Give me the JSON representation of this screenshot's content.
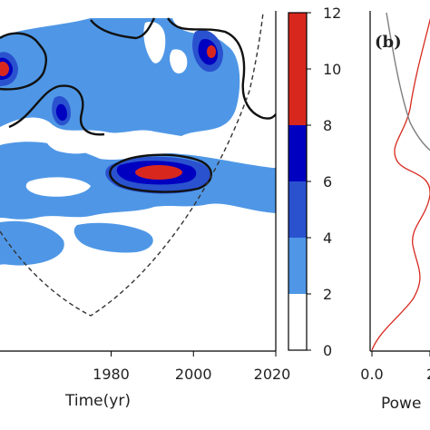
{
  "chart_data": [
    {
      "type": "heatmap",
      "panel": "wavelet-power-spectrum",
      "title": "",
      "xlabel": "Time(yr)",
      "ylabel": "",
      "xlim": [
        1953,
        2020
      ],
      "xticks": [
        1980,
        2000,
        2020
      ],
      "x_tick_labels": [
        "1980",
        "2000",
        "2020"
      ],
      "grid": false,
      "colorbar": {
        "levels": [
          0,
          2,
          4,
          6,
          8,
          10,
          12
        ],
        "tick_labels": [
          "0",
          "2",
          "4",
          "6",
          "8",
          "10",
          "12"
        ],
        "colors": [
          "#ffffff",
          "#4f97e6",
          "#2a52cf",
          "#0000c0",
          "#d8281e"
        ]
      },
      "high_power_centers": [
        {
          "time": 1955,
          "level": 10
        },
        {
          "time": 1960,
          "level": 8
        },
        {
          "time": 1971,
          "level": 8
        },
        {
          "time": 2007,
          "level": 10
        },
        {
          "time": 1998,
          "level": 12
        }
      ],
      "cone_of_influence": "dashed",
      "significance_contours": "solid-black"
    },
    {
      "type": "line",
      "panel": "global-power",
      "panel_label": "(b)",
      "xlabel": "Powe",
      "x_tick_labels": [
        "0.0",
        "2"
      ],
      "series": [
        {
          "color": "#d8281e",
          "points": [
            [
              0.0,
              100
            ],
            [
              0.7,
              80
            ],
            [
              1.3,
              60
            ],
            [
              1.6,
              40
            ],
            [
              1.2,
              10
            ]
          ]
        },
        {
          "color": "#808080",
          "points": [
            [
              1.2,
              0
            ],
            [
              1.8,
              10
            ],
            [
              2.2,
              25
            ]
          ]
        }
      ]
    }
  ]
}
